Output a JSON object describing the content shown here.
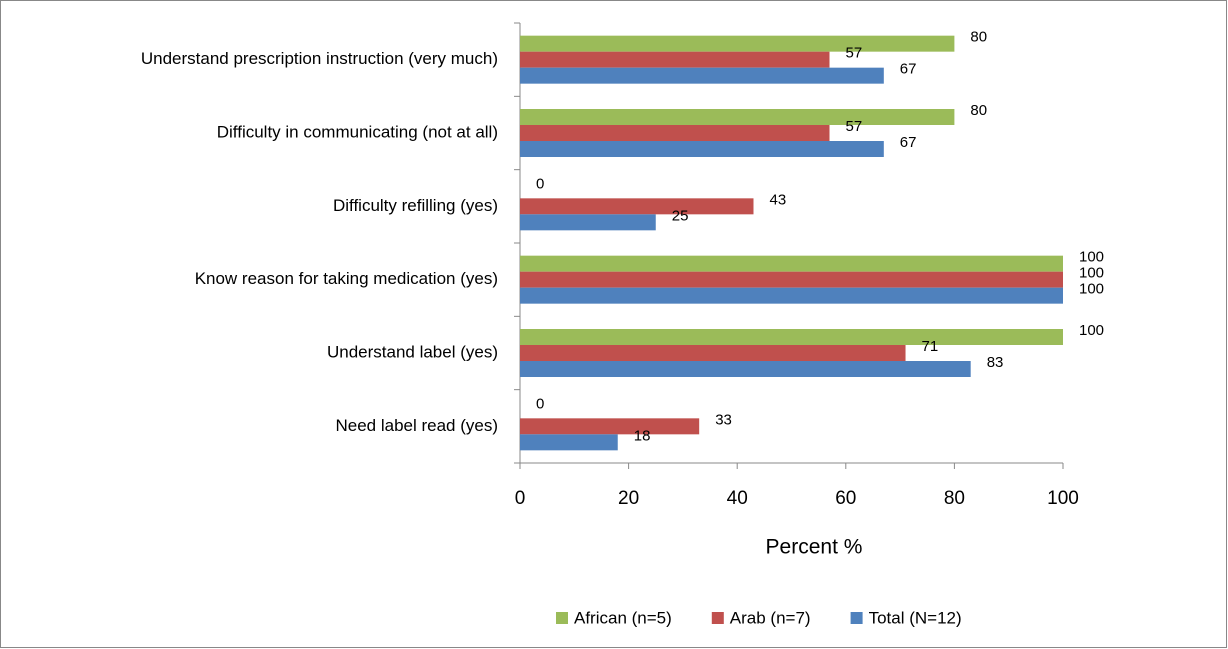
{
  "chart_data": {
    "type": "bar",
    "orientation": "horizontal",
    "categories": [
      "Understand prescription instruction (very much)",
      "Difficulty in communicating (not at all)",
      "Difficulty refilling (yes)",
      "Know reason for taking medication (yes)",
      "Understand  label (yes)",
      "Need  label read (yes)"
    ],
    "series": [
      {
        "name": "African (n=5)",
        "color": "#9bbb59",
        "values": [
          80,
          80,
          0,
          100,
          100,
          0
        ]
      },
      {
        "name": "Arab (n=7)",
        "color": "#c0504d",
        "values": [
          57,
          57,
          43,
          100,
          71,
          33
        ]
      },
      {
        "name": "Total (N=12)",
        "color": "#4f81bd",
        "values": [
          67,
          67,
          25,
          100,
          83,
          18
        ]
      }
    ],
    "xlabel": "Percent %",
    "xlim": [
      0,
      100
    ],
    "xticks": [
      0,
      20,
      40,
      60,
      80,
      100
    ],
    "grid": false,
    "legend": "bottom"
  }
}
